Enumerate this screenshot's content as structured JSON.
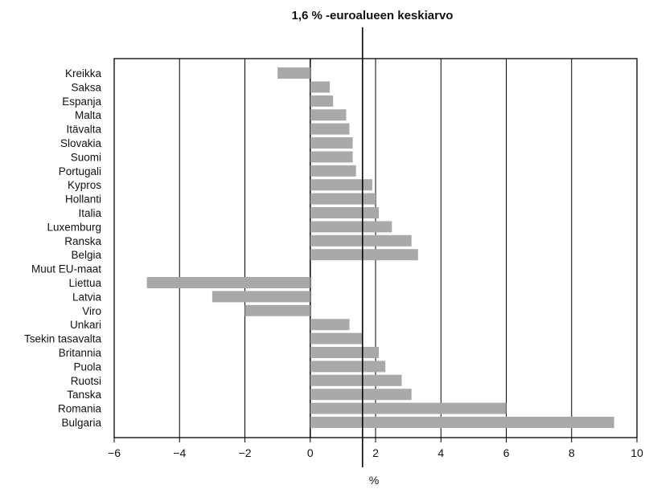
{
  "chart_data": {
    "type": "bar",
    "orientation": "horizontal",
    "title": "1,6 % -euroalueen keskiarvo",
    "xlabel": "%",
    "ylabel": "",
    "xlim": [
      -6,
      10
    ],
    "x_ticks": [
      -6,
      -4,
      -2,
      0,
      2,
      4,
      6,
      8,
      10
    ],
    "grid": "vertical lines at even ticks",
    "reference_line": {
      "value": 1.6
    },
    "bar_color": "#a9a9a9",
    "categories": [
      "Kreikka",
      "Saksa",
      "Espanja",
      "Malta",
      "Itävalta",
      "Slovakia",
      "Suomi",
      "Portugali",
      "Kypros",
      "Hollanti",
      "Italia",
      "Luxemburg",
      "Ranska",
      "Belgia",
      "Muut EU-maat",
      "Liettua",
      "Latvia",
      "Viro",
      "Unkari",
      "Tsekin tasavalta",
      "Britannia",
      "Puola",
      "Ruotsi",
      "Tanska",
      "Romania",
      "Bulgaria"
    ],
    "values": [
      -1.0,
      0.6,
      0.7,
      1.1,
      1.2,
      1.3,
      1.3,
      1.4,
      1.9,
      2.0,
      2.1,
      2.5,
      3.1,
      3.3,
      null,
      -5.0,
      -3.0,
      -2.0,
      1.2,
      1.6,
      2.1,
      2.3,
      2.8,
      3.1,
      6.0,
      9.3
    ]
  }
}
